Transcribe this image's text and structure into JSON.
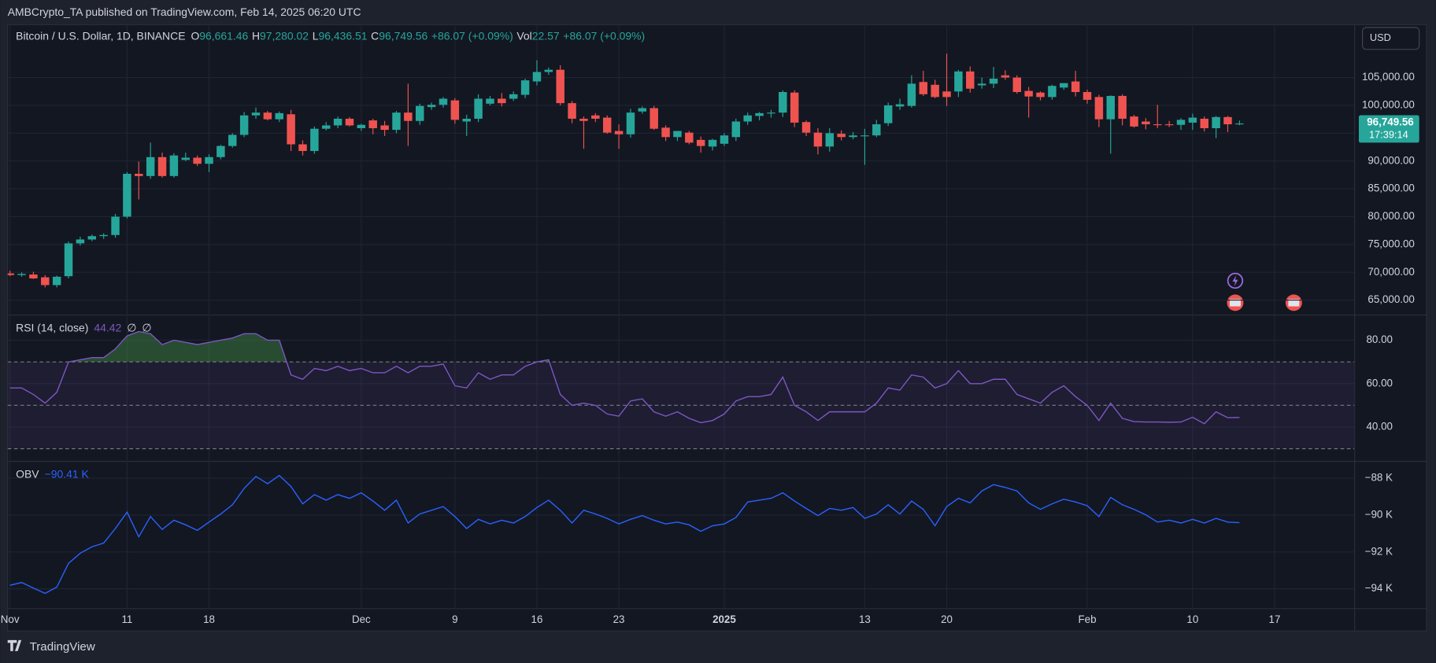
{
  "header": "AMBCrypto_TA published on TradingView.com, Feb 14, 2025 06:20 UTC",
  "footer": "TradingView",
  "currency": "USD",
  "chart_data": [
    {
      "type": "candlestick",
      "title": "Bitcoin / U.S. Dollar, 1D, BINANCE",
      "legend": [
        {
          "key": "O",
          "value": "96,661.46"
        },
        {
          "key": "H",
          "value": "97,280.02"
        },
        {
          "key": "L",
          "value": "96,436.51"
        },
        {
          "key": "C",
          "value": "96,749.56"
        }
      ],
      "change": "+86.07 (+0.09%)",
      "vol_key": "Vol",
      "vol_value": "22.57",
      "vol_change": "+86.07 (+0.09%)",
      "last_price_label": "96,749.56",
      "countdown": "17:39:14",
      "up_color": "#26a69a",
      "down_color": "#ef5350",
      "open": [
        69800,
        69500,
        69600,
        69100,
        67700,
        69300,
        75200,
        75900,
        76500,
        76700,
        80000,
        87700,
        87300,
        90700,
        87300,
        90200,
        90600,
        89500,
        90700,
        92700,
        94700,
        98200,
        98700,
        97500,
        98400,
        93000,
        91800,
        95800,
        96400,
        97600,
        95900,
        97300,
        96400,
        95600,
        98700,
        97200,
        99700,
        100100,
        100900,
        97100,
        97600,
        100300,
        101200,
        101200,
        101900,
        104300,
        106000,
        106400,
        100400,
        97600,
        98200,
        97800,
        95400,
        94800,
        98900,
        99500,
        96000,
        94300,
        95100,
        93800,
        92600,
        93100,
        94300,
        97100,
        98100,
        98600,
        98700,
        102300,
        97000,
        95100,
        92600,
        94900,
        94300,
        94500,
        94600,
        96800,
        99800,
        99900,
        104200,
        103700,
        102500,
        102500,
        106100,
        103600,
        103900,
        105400,
        105000,
        102600,
        102300,
        101500,
        103200,
        104300,
        102400,
        101500,
        97500,
        101700,
        98000,
        97100,
        96600,
        96600,
        96500,
        96900,
        97600,
        95900,
        97900,
        96661.46
      ],
      "high": [
        70300,
        70000,
        70100,
        69500,
        69400,
        75500,
        76400,
        76800,
        77000,
        80500,
        88000,
        89900,
        93300,
        91500,
        91400,
        91500,
        91000,
        91200,
        92900,
        95000,
        98800,
        99600,
        99000,
        98900,
        99200,
        93700,
        96200,
        97000,
        98000,
        97900,
        96700,
        97600,
        97200,
        99000,
        103900,
        100300,
        100500,
        101500,
        101300,
        98300,
        102000,
        101700,
        102200,
        102500,
        104800,
        108100,
        106800,
        107200,
        100800,
        98000,
        98600,
        98200,
        96600,
        99400,
        99800,
        99900,
        96400,
        95400,
        95400,
        94400,
        94000,
        95000,
        97600,
        98700,
        98800,
        99200,
        102700,
        102700,
        97300,
        95900,
        95900,
        95500,
        95200,
        95800,
        97400,
        100500,
        101200,
        105400,
        106200,
        104600,
        109300,
        106400,
        107000,
        105000,
        106900,
        106300,
        105400,
        103300,
        102500,
        103700,
        104000,
        106200,
        102800,
        101900,
        101800,
        102000,
        98300,
        97700,
        100100,
        97200,
        97700,
        98500,
        98000,
        98100,
        98100,
        97280.02
      ],
      "low": [
        69300,
        69200,
        68800,
        67300,
        67300,
        68900,
        74800,
        75600,
        76000,
        76200,
        79700,
        83100,
        86800,
        87000,
        87000,
        90000,
        89100,
        88000,
        90300,
        92400,
        94300,
        97600,
        97300,
        97000,
        91800,
        91000,
        91300,
        95500,
        95900,
        96200,
        95400,
        94800,
        94500,
        95000,
        92700,
        96500,
        99200,
        99600,
        96700,
        94500,
        97000,
        100000,
        99800,
        100800,
        101300,
        103600,
        105500,
        100000,
        96800,
        92200,
        97000,
        94900,
        92200,
        94200,
        98500,
        95600,
        93600,
        93600,
        93000,
        91500,
        91900,
        92700,
        93600,
        96500,
        97300,
        97800,
        97900,
        96100,
        94500,
        91200,
        91700,
        93700,
        93900,
        89300,
        94300,
        96300,
        99200,
        99600,
        101700,
        101300,
        99900,
        101500,
        102300,
        103000,
        103100,
        104600,
        102100,
        97800,
        100900,
        101000,
        102800,
        101600,
        100300,
        96100,
        91300,
        96400,
        96000,
        95700,
        95900,
        96100,
        95600,
        95600,
        95300,
        94100,
        95200,
        96436.51
      ],
      "close": [
        69500,
        69700,
        68900,
        67700,
        69200,
        75200,
        75900,
        76500,
        76700,
        80000,
        87700,
        87300,
        90700,
        87300,
        91000,
        90600,
        89500,
        90700,
        92700,
        94700,
        98200,
        98700,
        97500,
        98600,
        93000,
        91800,
        95800,
        96400,
        97600,
        96400,
        96500,
        95900,
        95600,
        98700,
        97200,
        99900,
        100100,
        101200,
        97400,
        97600,
        101200,
        101200,
        100400,
        102000,
        104500,
        106000,
        106400,
        100400,
        97600,
        97200,
        97600,
        95100,
        94800,
        98700,
        99500,
        95800,
        94300,
        95400,
        93300,
        92700,
        93800,
        94600,
        97100,
        98200,
        98600,
        98700,
        102400,
        96900,
        95100,
        92600,
        95000,
        94300,
        94600,
        94600,
        96600,
        100000,
        100200,
        103900,
        102000,
        101500,
        101500,
        106100,
        103000,
        103900,
        104800,
        105000,
        102400,
        101600,
        101500,
        103500,
        104000,
        102400,
        101000,
        97500,
        101700,
        97600,
        96200,
        96600,
        96500,
        96500,
        97400,
        97800,
        95900,
        97900,
        96600,
        96749.56
      ],
      "xlim": [
        -0.2,
        114.8
      ],
      "xticks": [
        {
          "value": 0,
          "label": "Nov"
        },
        {
          "value": 10,
          "label": "11"
        },
        {
          "value": 17,
          "label": "18"
        },
        {
          "value": 30,
          "label": "Dec"
        },
        {
          "value": 38,
          "label": "9"
        },
        {
          "value": 45,
          "label": "16"
        },
        {
          "value": 52,
          "label": "23"
        },
        {
          "value": 61,
          "label": "2025",
          "bold": true
        },
        {
          "value": 73,
          "label": "13"
        },
        {
          "value": 80,
          "label": "20"
        },
        {
          "value": 92,
          "label": "Feb"
        },
        {
          "value": 101,
          "label": "10"
        },
        {
          "value": 108,
          "label": "17"
        }
      ],
      "ylim": [
        62400,
        114500
      ],
      "yticks": [
        {
          "value": 65000,
          "label": "65,000.00"
        },
        {
          "value": 70000,
          "label": "70,000.00"
        },
        {
          "value": 75000,
          "label": "75,000.00"
        },
        {
          "value": 80000,
          "label": "80,000.00"
        },
        {
          "value": 85000,
          "label": "85,000.00"
        },
        {
          "value": 90000,
          "label": "90,000.00"
        },
        {
          "value": 95000,
          "label": "95,000.00"
        },
        {
          "value": 100000,
          "label": "100,000.00"
        },
        {
          "value": 105000,
          "label": "105,000.00"
        }
      ],
      "grid": true
    },
    {
      "type": "line",
      "title": "RSI (14, close)",
      "value_label": "44.42",
      "extras": [
        "∅",
        "∅"
      ],
      "color": "#7e57c2",
      "values": [
        58,
        58,
        55,
        51,
        56,
        70,
        71,
        72,
        72,
        76,
        82,
        84,
        83,
        78,
        80,
        79,
        78,
        79,
        80,
        81,
        83,
        83,
        80,
        80,
        64,
        62,
        67,
        66,
        68,
        66,
        67,
        65,
        65,
        68,
        65,
        68,
        68,
        69,
        59,
        58,
        65,
        62,
        64,
        64,
        68,
        70,
        71,
        55,
        50,
        51,
        50,
        46,
        45,
        52,
        53,
        47,
        45,
        47,
        44,
        42,
        43,
        46,
        52,
        54,
        54,
        55,
        63,
        50,
        47,
        43,
        47,
        47,
        47,
        47,
        51,
        58,
        57,
        64,
        63,
        58,
        60,
        66,
        60,
        60,
        62,
        62,
        55,
        53,
        51,
        56,
        59,
        54,
        50,
        43,
        51,
        44,
        42.5,
        42.3,
        42.3,
        42.2,
        42.3,
        44.5,
        41.5,
        47,
        44.3,
        44.42
      ],
      "levels": [
        70,
        50,
        30
      ],
      "ylim": [
        24.8,
        91.4
      ],
      "yticks": [
        {
          "value": 40,
          "label": "40.00"
        },
        {
          "value": 60,
          "label": "60.00"
        },
        {
          "value": 80,
          "label": "80.00"
        }
      ]
    },
    {
      "type": "line",
      "title": "OBV",
      "value_label": "−90.41 K",
      "color": "#2962ff",
      "values": [
        -93.81,
        -93.66,
        -93.96,
        -94.25,
        -93.91,
        -92.62,
        -92.07,
        -91.72,
        -91.52,
        -90.73,
        -89.84,
        -91.18,
        -90.08,
        -90.78,
        -90.28,
        -90.53,
        -90.83,
        -90.38,
        -89.94,
        -89.44,
        -88.55,
        -87.9,
        -88.3,
        -87.85,
        -88.45,
        -89.39,
        -88.89,
        -89.19,
        -88.89,
        -89.09,
        -88.79,
        -89.24,
        -89.74,
        -89.19,
        -90.43,
        -89.94,
        -89.74,
        -89.54,
        -90.08,
        -90.73,
        -90.23,
        -90.48,
        -90.28,
        -90.43,
        -90.08,
        -89.59,
        -89.19,
        -89.74,
        -90.43,
        -89.74,
        -89.94,
        -90.18,
        -90.48,
        -90.23,
        -90.03,
        -90.28,
        -90.48,
        -90.38,
        -90.53,
        -90.88,
        -90.58,
        -90.48,
        -90.13,
        -89.29,
        -89.19,
        -89.09,
        -88.79,
        -89.24,
        -89.64,
        -90.03,
        -89.64,
        -89.74,
        -89.59,
        -90.18,
        -89.94,
        -89.44,
        -89.94,
        -89.24,
        -89.69,
        -90.58,
        -89.54,
        -89.09,
        -89.34,
        -88.69,
        -88.35,
        -88.5,
        -88.69,
        -89.34,
        -89.69,
        -89.39,
        -89.14,
        -89.29,
        -89.49,
        -90.08,
        -89.04,
        -89.44,
        -89.69,
        -89.99,
        -90.38,
        -90.28,
        -90.43,
        -90.23,
        -90.43,
        -90.18,
        -90.38,
        -90.41
      ],
      "ylim": [
        -95.05,
        -87.11
      ],
      "yticks": [
        {
          "value": -94,
          "label": "−94 K"
        },
        {
          "value": -92,
          "label": "−92 K"
        },
        {
          "value": -90,
          "label": "−90 K"
        },
        {
          "value": -88,
          "label": "−88 K"
        }
      ]
    }
  ]
}
